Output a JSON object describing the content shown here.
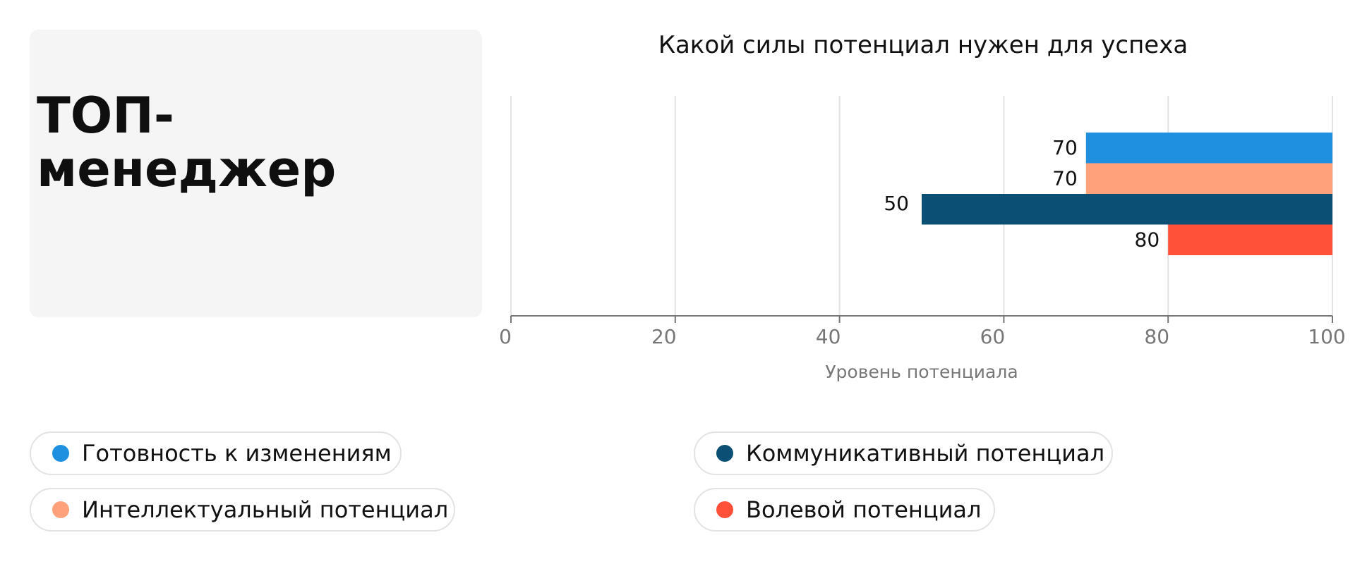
{
  "role_card": {
    "title": "ТОП-менеджер"
  },
  "chart_data": {
    "type": "bar",
    "orientation": "horizontal",
    "title": "Какой силы потенциал нужен для успеха",
    "xlabel": "Уровень потенциала",
    "ylabel": "",
    "xlim": [
      0,
      100
    ],
    "x_ticks": [
      "0",
      "20",
      "40",
      "60",
      "80",
      "100"
    ],
    "grid": true,
    "legend_placement": "bottom",
    "series": [
      {
        "name": "Готовность к изменениям",
        "value": 70,
        "color": "#1f8fdf"
      },
      {
        "name": "Интеллектуальный потенциал",
        "value": 70,
        "color": "#ffa27b"
      },
      {
        "name": "Коммуникативный потенциал",
        "value": 50,
        "color": "#0b4f75"
      },
      {
        "name": "Волевой потенциал",
        "value": 80,
        "color": "#ff503a"
      }
    ]
  }
}
